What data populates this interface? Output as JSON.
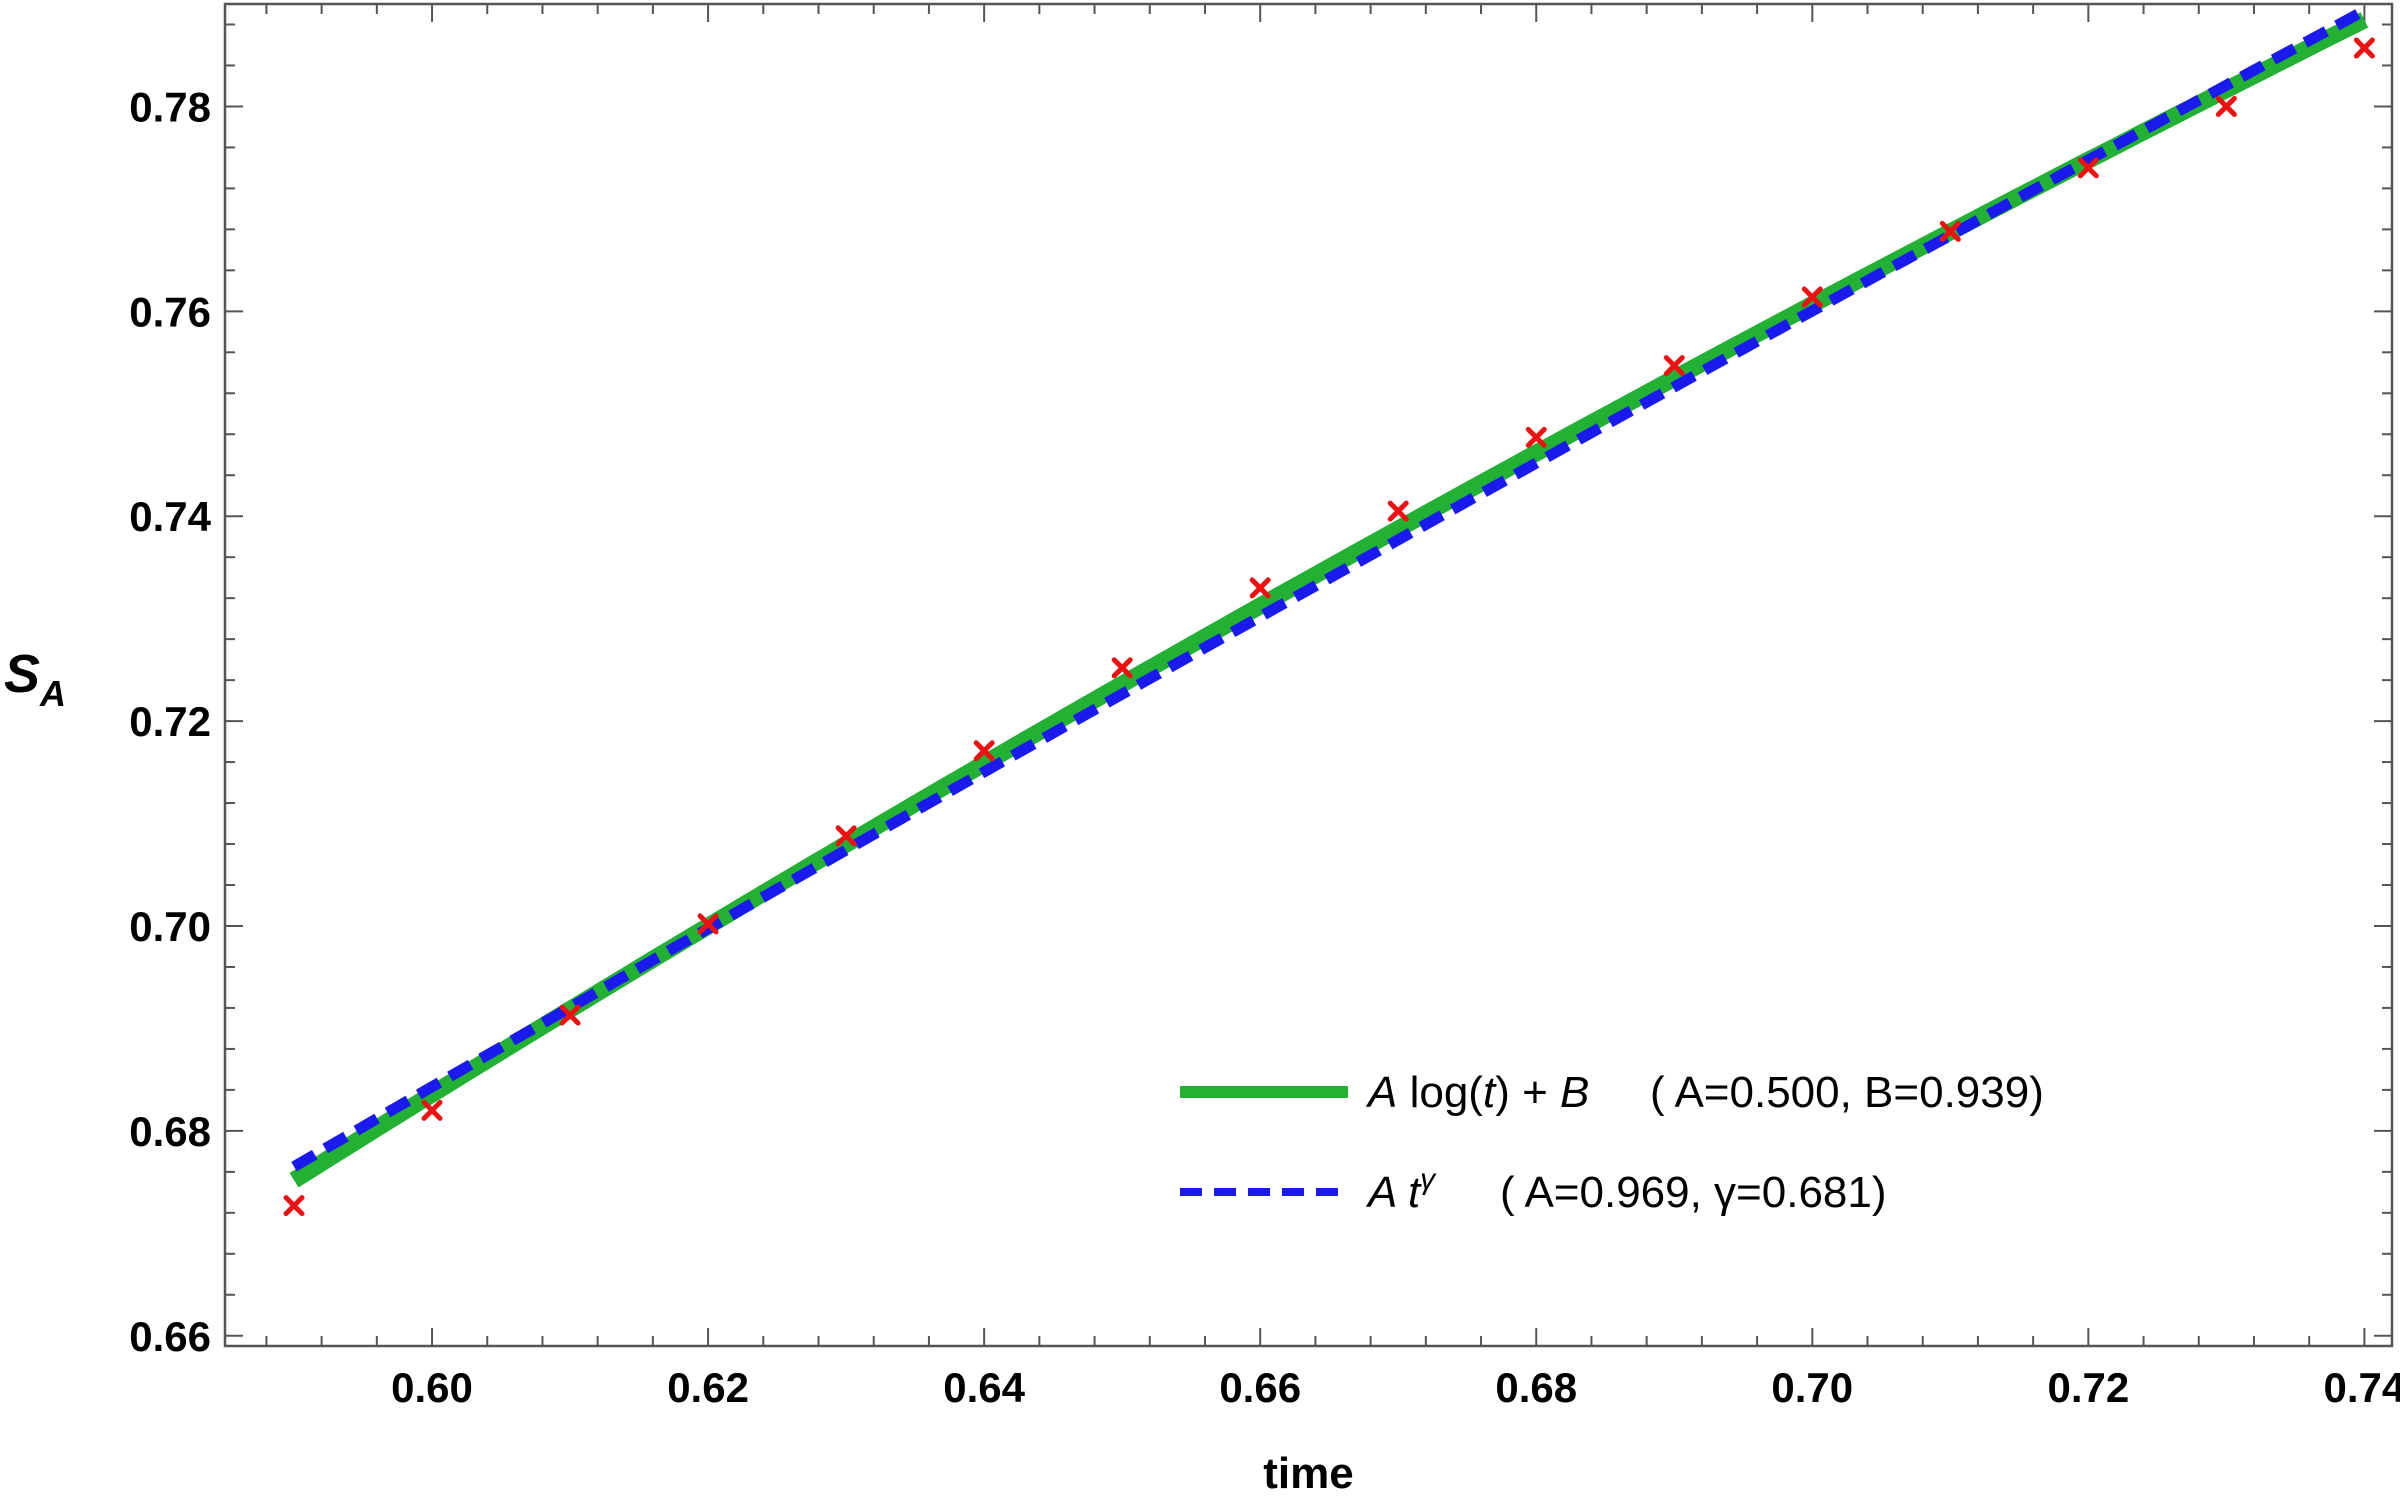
{
  "chart_data": {
    "type": "scatter",
    "xlabel": "time",
    "ylabel": {
      "main": "S",
      "sub": "A"
    },
    "xlim": [
      0.585,
      0.742
    ],
    "ylim": [
      0.659,
      0.79
    ],
    "xticks": [
      0.6,
      0.62,
      0.64,
      0.66,
      0.68,
      0.7,
      0.72,
      0.74
    ],
    "xtick_labels": [
      "0.60",
      "0.62",
      "0.64",
      "0.66",
      "0.68",
      "0.70",
      "0.72",
      "0.74"
    ],
    "yticks": [
      0.66,
      0.68,
      0.7,
      0.72,
      0.74,
      0.76,
      0.78
    ],
    "ytick_labels": [
      "0.66",
      "0.68",
      "0.70",
      "0.72",
      "0.74",
      "0.76",
      "0.78"
    ],
    "grid": false,
    "legend_position": "bottom-right",
    "points": {
      "color": "#ee1111",
      "marker": "x",
      "x": [
        0.59,
        0.6,
        0.61,
        0.62,
        0.63,
        0.64,
        0.65,
        0.66,
        0.67,
        0.68,
        0.69,
        0.7,
        0.71,
        0.72,
        0.73,
        0.74
      ],
      "y": [
        0.6727,
        0.682,
        0.6913,
        0.7002,
        0.7088,
        0.7171,
        0.7252,
        0.733,
        0.7405,
        0.7477,
        0.7547,
        0.7614,
        0.7678,
        0.774,
        0.78,
        0.7857
      ]
    },
    "series": [
      {
        "name": "A log(t) + B",
        "label_italic": "A",
        "label_plain": " log(",
        "label_italic2": "t",
        "label_plain2": ") + ",
        "label_italic3": "B",
        "params": "( A=0.500, B=0.939)",
        "style": "solid",
        "color": "#22b133",
        "model": "log",
        "A": 0.5,
        "B": 0.939
      },
      {
        "name": "A t^γ",
        "label_italic": "A t",
        "label_sup": "γ",
        "params": "( A=0.969,  γ=0.681)",
        "style": "dashed",
        "color": "#1a1aee",
        "model": "power",
        "A": 0.969,
        "gamma": 0.681
      }
    ]
  }
}
